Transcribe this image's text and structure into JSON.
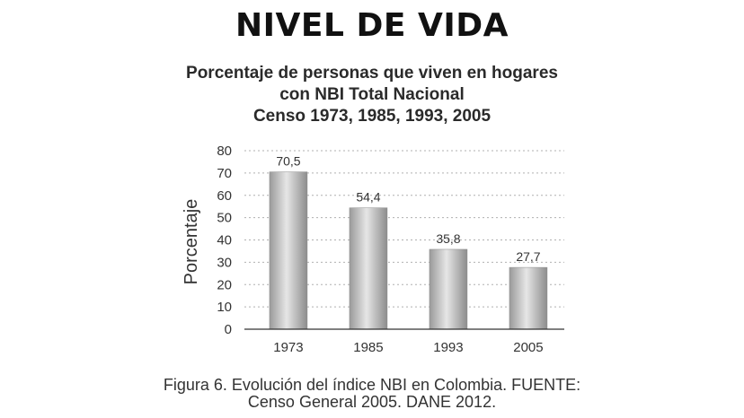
{
  "header": {
    "title": "NIVEL DE VIDA"
  },
  "chart_data": {
    "type": "bar",
    "title_lines": [
      "Porcentaje de personas que viven en hogares",
      "con NBI Total Nacional",
      "Censo 1973, 1985, 1993, 2005"
    ],
    "ylabel": "Porcentaje",
    "xlabel": "",
    "categories": [
      "1973",
      "1985",
      "1993",
      "2005"
    ],
    "values": [
      70.5,
      54.4,
      35.8,
      27.7
    ],
    "value_labels": [
      "70,5",
      "54,4",
      "35,8",
      "27,7"
    ],
    "ylim": [
      0,
      80
    ],
    "yticks": [
      0,
      10,
      20,
      30,
      40,
      50,
      60,
      70,
      80
    ],
    "grid": true,
    "bar_color": "#c4c4c4"
  },
  "caption": {
    "line1": "Figura 6. Evolución del índice NBI en Colombia. FUENTE:",
    "line2": "Censo General 2005. DANE 2012."
  }
}
